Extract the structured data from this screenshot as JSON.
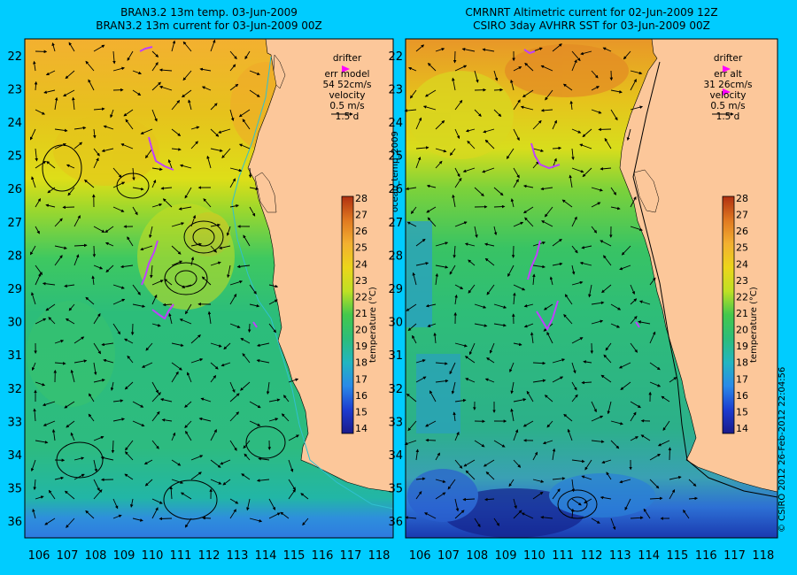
{
  "left_panel": {
    "title_line1": "BRAN3.2 13m temp. 03-Jun-2009",
    "title_line2": "BRAN3.2 13m current for 03-Jun-2009 00Z",
    "legend": {
      "drifter_label": "drifter",
      "err_label": "err model",
      "err_value": "54 52cm/s",
      "velocity_label": "velocity",
      "velocity_scale": "0.5 m/s",
      "duration": "1.5 d"
    },
    "side_label": "ocean_temp_2009"
  },
  "right_panel": {
    "title_line1": "CMRNRT Altimetric current for 02-Jun-2009 12Z",
    "title_line2": "CSIRO 3day AVHRR SST for 03-Jun-2009 00Z",
    "legend": {
      "drifter_label": "drifter",
      "err_label": "err alt",
      "err_value": "31 26cm/s",
      "velocity_label": "velocity",
      "velocity_scale": "0.5 m/s",
      "duration": "1.5 d"
    },
    "side_label": "© CSIRO 2012   26-Feb-2012 22:04:56"
  },
  "axes": {
    "x_ticks": [
      "106",
      "107",
      "108",
      "109",
      "110",
      "111",
      "112",
      "113",
      "114",
      "115",
      "116",
      "117",
      "118"
    ],
    "y_ticks": [
      "22",
      "23",
      "24",
      "25",
      "26",
      "27",
      "28",
      "29",
      "30",
      "31",
      "32",
      "33",
      "34",
      "35",
      "36"
    ]
  },
  "colorbar": {
    "label": "temperature (°C)",
    "ticks": [
      "14",
      "15",
      "16",
      "17",
      "18",
      "19",
      "20",
      "21",
      "22",
      "23",
      "24",
      "25",
      "26",
      "27",
      "28"
    ]
  },
  "colors": {
    "background": "#00ccff",
    "land": "#fcc79a",
    "drifter": "#c040ff",
    "legend_arrow": "#ff00ff"
  }
}
